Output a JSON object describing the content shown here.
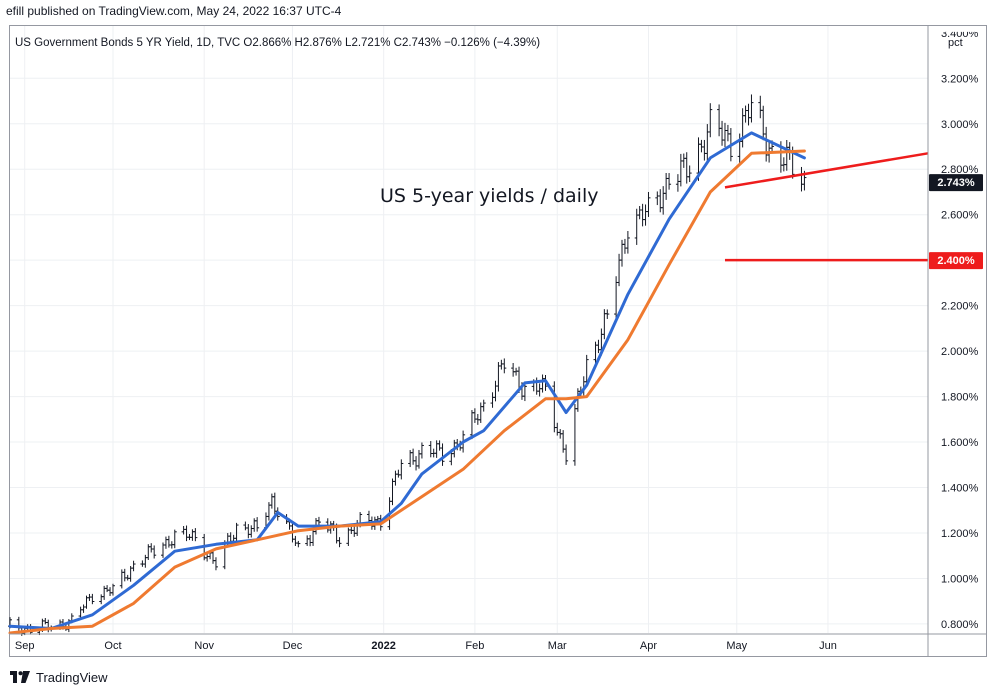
{
  "header": {
    "publisher": "efill published on TradingView.com, May 24, 2022 16:37 UTC-4"
  },
  "footer": {
    "brand": "TradingView"
  },
  "colors": {
    "bars": "#131722",
    "ma_fast": "#2f6ad3",
    "ma_slow": "#ef7a30",
    "annotation": "#ee1c1c",
    "grid": "#eef0f3",
    "label_dark": "#131722",
    "label_red": "#ee1c1c"
  },
  "chart_data": {
    "type": "line",
    "subtype": "ohlc-bars-with-moving-averages",
    "legend_text": "US Government Bonds 5 YR Yield, 1D, TVC  O2.866%  H2.876%  L2.721%  C2.743%  −0.126% (−4.39%)",
    "annotation": "US 5-year yields / daily",
    "y_unit": "pct",
    "ylim": [
      0.76,
      3.43
    ],
    "y_ticks": [
      "0.800%",
      "1.000%",
      "1.200%",
      "1.400%",
      "1.600%",
      "1.800%",
      "2.000%",
      "2.200%",
      "2.400%",
      "2.600%",
      "2.800%",
      "3.000%",
      "3.200%"
    ],
    "y_tick_values": [
      0.8,
      1.0,
      1.2,
      1.4,
      1.6,
      1.8,
      2.0,
      2.2,
      2.4,
      2.6,
      2.8,
      3.0,
      3.2
    ],
    "y_top_partial": "3.400%",
    "x_labels": [
      {
        "label": "Sep",
        "date": "2021-09-01"
      },
      {
        "label": "Oct",
        "date": "2021-10-01"
      },
      {
        "label": "Nov",
        "date": "2021-11-01"
      },
      {
        "label": "Dec",
        "date": "2021-12-01"
      },
      {
        "label": "2022",
        "date": "2022-01-01",
        "bold": true
      },
      {
        "label": "Feb",
        "date": "2022-02-01"
      },
      {
        "label": "Mar",
        "date": "2022-03-01"
      },
      {
        "label": "Apr",
        "date": "2022-04-01"
      },
      {
        "label": "May",
        "date": "2022-05-01"
      },
      {
        "label": "Jun",
        "date": "2022-06-01"
      }
    ],
    "x_range": [
      "2021-08-27",
      "2022-07-05"
    ],
    "price_labels": [
      {
        "text": "2.743%",
        "value": 2.743,
        "style": "dark"
      },
      {
        "text": "2.400%",
        "value": 2.4,
        "style": "red"
      }
    ],
    "close_series": {
      "name": "US Government Bonds 5 YR Yield",
      "points": [
        [
          "2021-08-27",
          0.79
        ],
        [
          "2021-09-03",
          0.78
        ],
        [
          "2021-09-10",
          0.79
        ],
        [
          "2021-09-17",
          0.81
        ],
        [
          "2021-09-24",
          0.93
        ],
        [
          "2021-10-01",
          0.95
        ],
        [
          "2021-10-08",
          1.06
        ],
        [
          "2021-10-15",
          1.12
        ],
        [
          "2021-10-22",
          1.19
        ],
        [
          "2021-10-29",
          1.18
        ],
        [
          "2021-11-05",
          1.06
        ],
        [
          "2021-11-12",
          1.23
        ],
        [
          "2021-11-19",
          1.21
        ],
        [
          "2021-11-24",
          1.35
        ],
        [
          "2021-12-03",
          1.13
        ],
        [
          "2021-12-10",
          1.25
        ],
        [
          "2021-12-17",
          1.18
        ],
        [
          "2021-12-24",
          1.24
        ],
        [
          "2021-12-31",
          1.26
        ],
        [
          "2022-01-07",
          1.5
        ],
        [
          "2022-01-14",
          1.56
        ],
        [
          "2022-01-21",
          1.55
        ],
        [
          "2022-01-28",
          1.61
        ],
        [
          "2022-02-04",
          1.77
        ],
        [
          "2022-02-11",
          1.94
        ],
        [
          "2022-02-18",
          1.84
        ],
        [
          "2022-02-25",
          1.83
        ],
        [
          "2022-03-04",
          1.54
        ],
        [
          "2022-03-11",
          1.95
        ],
        [
          "2022-03-18",
          2.14
        ],
        [
          "2022-03-25",
          2.56
        ],
        [
          "2022-04-01",
          2.61
        ],
        [
          "2022-04-08",
          2.76
        ],
        [
          "2022-04-14",
          2.79
        ],
        [
          "2022-04-22",
          2.99
        ],
        [
          "2022-04-29",
          2.92
        ],
        [
          "2022-05-06",
          3.07
        ],
        [
          "2022-05-13",
          2.88
        ],
        [
          "2022-05-20",
          2.81
        ],
        [
          "2022-05-24",
          2.743
        ]
      ]
    },
    "series": [
      {
        "name": "Fast moving average",
        "color": "#2f6ad3",
        "points": [
          [
            "2021-08-27",
            0.79
          ],
          [
            "2021-09-10",
            0.78
          ],
          [
            "2021-09-24",
            0.84
          ],
          [
            "2021-10-08",
            0.97
          ],
          [
            "2021-10-22",
            1.12
          ],
          [
            "2021-11-05",
            1.15
          ],
          [
            "2021-11-19",
            1.17
          ],
          [
            "2021-11-26",
            1.29
          ],
          [
            "2021-12-03",
            1.23
          ],
          [
            "2021-12-17",
            1.23
          ],
          [
            "2021-12-31",
            1.25
          ],
          [
            "2022-01-07",
            1.33
          ],
          [
            "2022-01-14",
            1.46
          ],
          [
            "2022-01-28",
            1.6
          ],
          [
            "2022-02-04",
            1.65
          ],
          [
            "2022-02-18",
            1.86
          ],
          [
            "2022-02-25",
            1.87
          ],
          [
            "2022-03-04",
            1.73
          ],
          [
            "2022-03-11",
            1.85
          ],
          [
            "2022-03-25",
            2.25
          ],
          [
            "2022-04-08",
            2.58
          ],
          [
            "2022-04-22",
            2.85
          ],
          [
            "2022-05-06",
            2.96
          ],
          [
            "2022-05-24",
            2.85
          ]
        ]
      },
      {
        "name": "Slow moving average",
        "color": "#ef7a30",
        "points": [
          [
            "2021-08-27",
            0.76
          ],
          [
            "2021-09-10",
            0.78
          ],
          [
            "2021-09-24",
            0.79
          ],
          [
            "2021-10-08",
            0.89
          ],
          [
            "2021-10-22",
            1.05
          ],
          [
            "2021-11-05",
            1.13
          ],
          [
            "2021-11-19",
            1.17
          ],
          [
            "2021-12-03",
            1.21
          ],
          [
            "2021-12-17",
            1.23
          ],
          [
            "2021-12-31",
            1.24
          ],
          [
            "2022-01-14",
            1.36
          ],
          [
            "2022-01-28",
            1.48
          ],
          [
            "2022-02-11",
            1.65
          ],
          [
            "2022-02-25",
            1.79
          ],
          [
            "2022-03-04",
            1.79
          ],
          [
            "2022-03-11",
            1.8
          ],
          [
            "2022-03-25",
            2.05
          ],
          [
            "2022-04-08",
            2.38
          ],
          [
            "2022-04-22",
            2.7
          ],
          [
            "2022-05-06",
            2.87
          ],
          [
            "2022-05-24",
            2.88
          ]
        ]
      }
    ],
    "drawings": [
      {
        "name": "trendline",
        "from": [
          "2022-04-27",
          2.72
        ],
        "to": [
          "2022-07-05",
          2.87
        ]
      },
      {
        "name": "support-line",
        "from": [
          "2022-04-27",
          2.4
        ],
        "to": [
          "2022-07-05",
          2.4
        ]
      }
    ]
  }
}
